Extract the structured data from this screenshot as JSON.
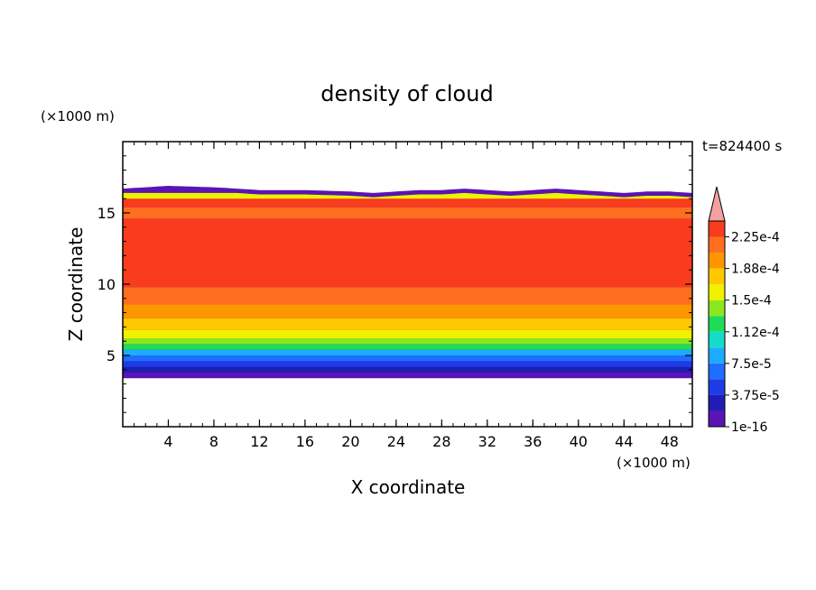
{
  "chart_data": {
    "type": "heatmap",
    "title": "density of cloud",
    "xlabel": "X coordinate",
    "ylabel": "Z coordinate",
    "x_unit": "(×1000 m)",
    "y_unit": "(×1000 m)",
    "time_label": "t=824400 s",
    "xlim": [
      0,
      50
    ],
    "ylim": [
      0,
      20
    ],
    "x_ticks": [
      4,
      8,
      12,
      16,
      20,
      24,
      28,
      32,
      36,
      40,
      44,
      48
    ],
    "x_minor_step": 1,
    "y_ticks": [
      5,
      10,
      15
    ],
    "y_minor_step": 1,
    "colorbar": {
      "levels": [
        1e-16,
        1.875e-05,
        3.75e-05,
        5.625e-05,
        7.5e-05,
        9.375e-05,
        0.0001125,
        0.00013125,
        0.00015,
        0.00016875,
        0.0001875,
        0.00020625,
        0.000225,
        0.00024375
      ],
      "colors": [
        "#5a14b4",
        "#1e1eb4",
        "#1e3ce6",
        "#1e6eff",
        "#1eaaff",
        "#14dcc8",
        "#1edc5a",
        "#8ce61e",
        "#f0f000",
        "#ffc800",
        "#ff9600",
        "#ff6e1e",
        "#fa3c1e",
        "#f5a0a0"
      ],
      "tick_labels": [
        "1e-16",
        "3.75e-5",
        "7.5e-5",
        "1.12e-4",
        "1.5e-4",
        "1.88e-4",
        "2.25e-4"
      ],
      "tick_level_index": [
        0,
        2,
        4,
        6,
        8,
        10,
        12
      ],
      "extend": "max"
    },
    "cloud_layer": {
      "base_z": 3.4,
      "top_z_profile": {
        "x": [
          0,
          4,
          8,
          12,
          16,
          20,
          22,
          24,
          26,
          28,
          30,
          32,
          34,
          36,
          38,
          40,
          42,
          44,
          46,
          48,
          50
        ],
        "z": [
          16.7,
          16.9,
          16.8,
          16.6,
          16.6,
          16.5,
          16.4,
          16.5,
          16.6,
          16.6,
          16.7,
          16.6,
          16.5,
          16.6,
          16.7,
          16.6,
          16.5,
          16.4,
          16.5,
          16.5,
          16.4
        ]
      },
      "vertical_profile": {
        "z": [
          3.4,
          3.8,
          4.2,
          4.6,
          5.0,
          5.4,
          5.8,
          6.2,
          6.8,
          7.6,
          8.6,
          9.8,
          13.8,
          14.6,
          15.4,
          16.0,
          16.4
        ],
        "level_index": [
          0,
          1,
          2,
          3,
          4,
          6,
          7,
          8,
          9,
          10,
          11,
          12,
          12,
          11,
          12,
          8,
          0
        ]
      }
    }
  }
}
